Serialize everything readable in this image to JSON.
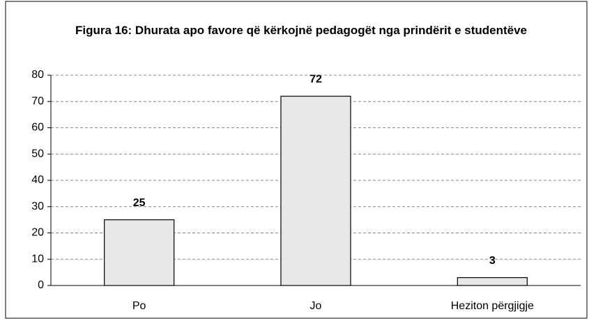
{
  "chart_data": {
    "type": "bar",
    "title": "Figura 16: Dhurata apo favore që kërkojnë pedagogët nga prindërit e studentëve",
    "categories": [
      "Po",
      "Jo",
      "Heziton përgjigje"
    ],
    "values": [
      25,
      72,
      3
    ],
    "color": "#e8e8e8",
    "ylim": [
      0,
      80
    ],
    "yticks": [
      0,
      10,
      20,
      30,
      40,
      50,
      60,
      70,
      80
    ],
    "grid": true
  }
}
